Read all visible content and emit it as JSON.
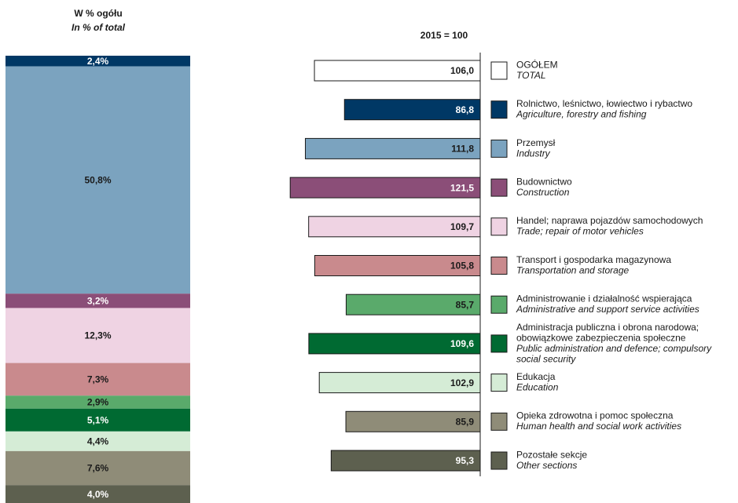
{
  "chart_data": [
    {
      "type": "stacked_column",
      "title": [
        "W % ogółu",
        "In % of total"
      ],
      "values": [
        2.4,
        50.8,
        3.2,
        12.3,
        7.3,
        2.9,
        5.1,
        4.4,
        7.6,
        4.0
      ],
      "value_labels": [
        "2,4%",
        "50,8%",
        "3,2%",
        "12,3%",
        "7,3%",
        "2,9%",
        "5,1%",
        "4,4%",
        "7,6%",
        "4,0%"
      ],
      "colors": [
        "#003865",
        "#7ba3bf",
        "#8b4e78",
        "#efd3e3",
        "#c98a8d",
        "#5aaa6b",
        "#006a32",
        "#d5ecd6",
        "#8f8c78",
        "#5d604f"
      ],
      "ylim": [
        0,
        100
      ]
    },
    {
      "type": "hbar_left",
      "title": "2015 = 100",
      "categories": [
        {
          "pl": [
            "OGÓŁEM"
          ],
          "en": [
            "TOTAL"
          ]
        },
        {
          "pl": [
            "Rolnictwo, leśnictwo, łowiectwo i rybactwo"
          ],
          "en": [
            "Agriculture, forestry and fishing"
          ]
        },
        {
          "pl": [
            "Przemysł"
          ],
          "en": [
            "Industry"
          ]
        },
        {
          "pl": [
            "Budownictwo"
          ],
          "en": [
            "Construction"
          ]
        },
        {
          "pl": [
            "Handel; naprawa pojazdów samochodowych"
          ],
          "en": [
            "Trade; repair of motor vehicles"
          ]
        },
        {
          "pl": [
            "Transport i gospodarka magazynowa"
          ],
          "en": [
            "Transportation and storage"
          ]
        },
        {
          "pl": [
            "Administrowanie i działalność wspierająca"
          ],
          "en": [
            "Administrative and support service activities"
          ]
        },
        {
          "pl": [
            "Administracja publiczna i obrona narodowa;",
            "obowiązkowe zabezpieczenia społeczne"
          ],
          "en": [
            "Public administration and defence; compulsory",
            "social security"
          ]
        },
        {
          "pl": [
            "Edukacja"
          ],
          "en": [
            "Education"
          ]
        },
        {
          "pl": [
            "Opieka zdrowotna i pomoc społeczna"
          ],
          "en": [
            "Human health and social work activities"
          ]
        },
        {
          "pl": [
            "Pozostałe sekcje"
          ],
          "en": [
            "Other sections"
          ]
        }
      ],
      "values": [
        106.0,
        86.8,
        111.8,
        121.5,
        109.7,
        105.8,
        85.7,
        109.6,
        102.9,
        85.9,
        95.3
      ],
      "value_labels": [
        "106,0",
        "86,8",
        "111,8",
        "121,5",
        "109,7",
        "105,8",
        "85,7",
        "109,6",
        "102,9",
        "85,9",
        "95,3"
      ],
      "colors": [
        "#ffffff",
        "#003865",
        "#7ba3bf",
        "#8b4e78",
        "#efd3e3",
        "#c98a8d",
        "#5aaa6b",
        "#006a32",
        "#d5ecd6",
        "#8f8c78",
        "#5d604f"
      ],
      "xlim": [
        0,
        125
      ]
    }
  ]
}
